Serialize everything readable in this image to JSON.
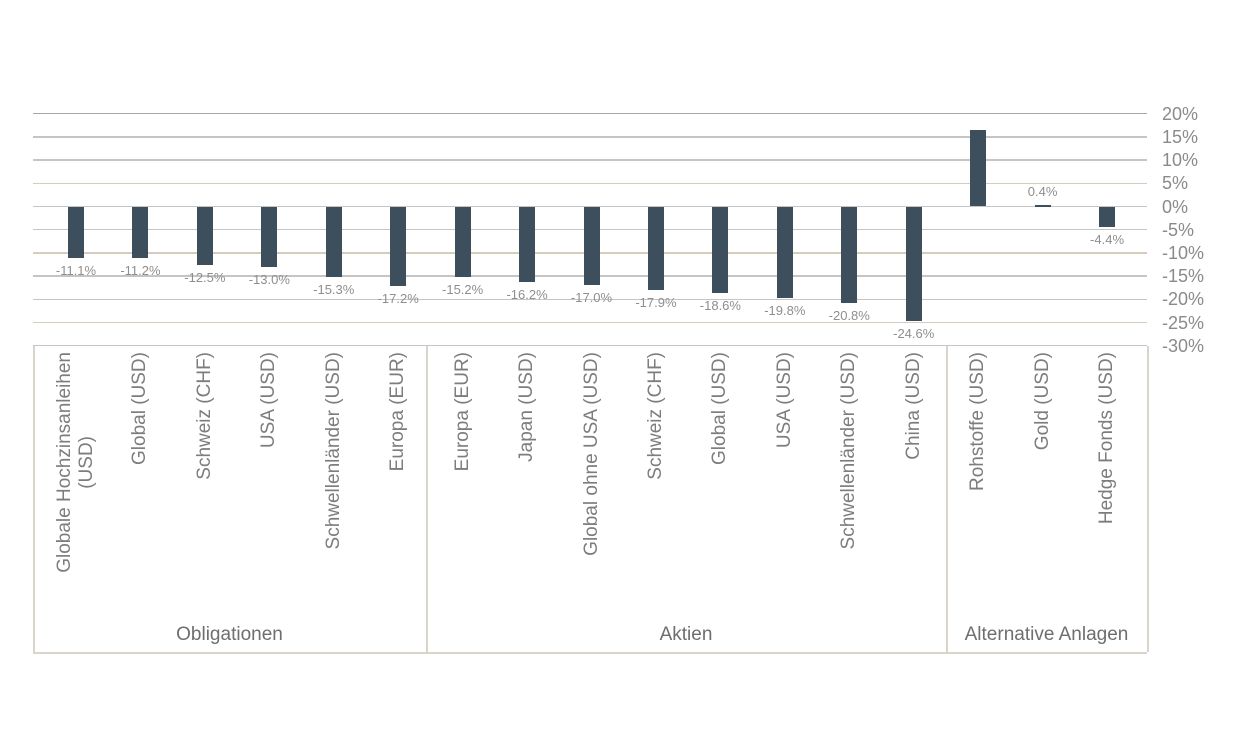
{
  "chart_data": {
    "type": "bar",
    "title": "",
    "xlabel": "",
    "ylabel": "",
    "unit": "%",
    "ylim": [
      -30,
      20
    ],
    "grid": true,
    "legend": false,
    "ytick_values": [
      20,
      15,
      10,
      5,
      0,
      -5,
      -10,
      -15,
      -20,
      -25,
      -30
    ],
    "ytick_labels": [
      "20%",
      "15%",
      "10%",
      "5%",
      "0%",
      "-5%",
      "-10%",
      "-15%",
      "-20%",
      "-25%",
      "-30%"
    ],
    "groups": [
      {
        "label": "Obligationen",
        "items": [
          {
            "label": "Globale Hochzinsanleihen\n(USD)",
            "value": -11.1,
            "data_label": "-11.1%"
          },
          {
            "label": "Global (USD)",
            "value": -11.2,
            "data_label": "-11.2%"
          },
          {
            "label": "Schweiz (CHF)",
            "value": -12.5,
            "data_label": "-12.5%"
          },
          {
            "label": "USA (USD)",
            "value": -13.0,
            "data_label": "-13.0%"
          },
          {
            "label": "Schwellenländer (USD)",
            "value": -15.3,
            "data_label": "-15.3%"
          },
          {
            "label": "Europa (EUR)",
            "value": -17.2,
            "data_label": "-17.2%"
          }
        ]
      },
      {
        "label": "Aktien",
        "items": [
          {
            "label": "Europa (EUR)",
            "value": -15.2,
            "data_label": "-15.2%"
          },
          {
            "label": "Japan (USD)",
            "value": -16.2,
            "data_label": "-16.2%"
          },
          {
            "label": "Global ohne USA (USD)",
            "value": -17.0,
            "data_label": "-17.0%"
          },
          {
            "label": "Schweiz (CHF)",
            "value": -17.9,
            "data_label": "-17.9%"
          },
          {
            "label": "Global (USD)",
            "value": -18.6,
            "data_label": "-18.6%"
          },
          {
            "label": "USA (USD)",
            "value": -19.8,
            "data_label": "-19.8%"
          },
          {
            "label": "Schwellenländer (USD)",
            "value": -20.8,
            "data_label": "-20.8%"
          },
          {
            "label": "China (USD)",
            "value": -24.6,
            "data_label": "-24.6%"
          }
        ]
      },
      {
        "label": "Alternative Anlagen",
        "items": [
          {
            "label": "Rohstoffe (USD)",
            "value": 16.4,
            "data_label": ""
          },
          {
            "label": "Gold (USD)",
            "value": 0.4,
            "data_label": "0.4%"
          },
          {
            "label": "Hedge Fonds (USD)",
            "value": -4.4,
            "data_label": "-4.4%"
          }
        ]
      }
    ],
    "colors": {
      "bar": "#3d4f5d",
      "grid_major": "#a6a6a6",
      "grid_gray": "#c5c5c5",
      "grid_beige": "#d6ccbc",
      "axis_label": "#8a8a8a",
      "data_label": "#8e8e8e",
      "category_label": "#7d7d7d",
      "group_label": "#6e6e6e",
      "box_border": "#d9d5cb"
    }
  }
}
